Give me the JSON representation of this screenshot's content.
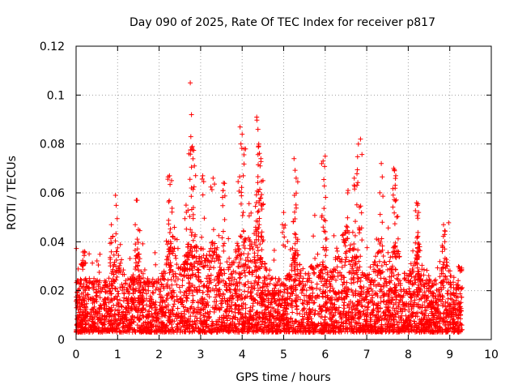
{
  "chart_data": {
    "type": "scatter",
    "title": "Day 090 of 2025, Rate Of TEC Index for receiver p817",
    "xlabel": "GPS time / hours",
    "ylabel": "ROTI / TECUs",
    "xlim": [
      0,
      10
    ],
    "ylim": [
      0,
      0.12
    ],
    "xticks": [
      0,
      1,
      2,
      3,
      4,
      5,
      6,
      7,
      8,
      9,
      10
    ],
    "yticks": [
      0,
      0.02,
      0.04,
      0.06,
      0.08,
      0.1,
      0.12
    ],
    "xtick_labels": [
      "0",
      "1",
      "2",
      "3",
      "4",
      "5",
      "6",
      "7",
      "8",
      "9",
      "10"
    ],
    "ytick_labels": [
      "0",
      "0.02",
      "0.04",
      "0.06",
      "0.08",
      "0.1",
      "0.12"
    ],
    "grid": true,
    "marker": "+",
    "marker_color": "#ff0000",
    "series": [
      {
        "name": "ROTI",
        "description": "thousands of points between 0 and ~9.3 h; representative sample of peak points listed, bulk generated as dense cloud",
        "peaks": [
          {
            "x": 0.15,
            "y": 0.031
          },
          {
            "x": 0.2,
            "y": 0.036
          },
          {
            "x": 0.85,
            "y": 0.047
          },
          {
            "x": 0.95,
            "y": 0.059
          },
          {
            "x": 1.45,
            "y": 0.057
          },
          {
            "x": 1.5,
            "y": 0.045
          },
          {
            "x": 2.25,
            "y": 0.067
          },
          {
            "x": 2.3,
            "y": 0.065
          },
          {
            "x": 2.65,
            "y": 0.055
          },
          {
            "x": 2.75,
            "y": 0.105
          },
          {
            "x": 2.78,
            "y": 0.092
          },
          {
            "x": 2.8,
            "y": 0.079
          },
          {
            "x": 2.85,
            "y": 0.071
          },
          {
            "x": 3.05,
            "y": 0.067
          },
          {
            "x": 3.3,
            "y": 0.066
          },
          {
            "x": 3.55,
            "y": 0.064
          },
          {
            "x": 3.95,
            "y": 0.087
          },
          {
            "x": 4.0,
            "y": 0.084
          },
          {
            "x": 4.05,
            "y": 0.078
          },
          {
            "x": 4.35,
            "y": 0.091
          },
          {
            "x": 4.38,
            "y": 0.086
          },
          {
            "x": 4.4,
            "y": 0.08
          },
          {
            "x": 4.45,
            "y": 0.074
          },
          {
            "x": 4.5,
            "y": 0.065
          },
          {
            "x": 5.0,
            "y": 0.052
          },
          {
            "x": 5.25,
            "y": 0.074
          },
          {
            "x": 5.3,
            "y": 0.066
          },
          {
            "x": 5.95,
            "y": 0.073
          },
          {
            "x": 6.0,
            "y": 0.075
          },
          {
            "x": 6.55,
            "y": 0.061
          },
          {
            "x": 6.7,
            "y": 0.066
          },
          {
            "x": 6.8,
            "y": 0.08
          },
          {
            "x": 6.85,
            "y": 0.082
          },
          {
            "x": 7.35,
            "y": 0.072
          },
          {
            "x": 7.65,
            "y": 0.07
          },
          {
            "x": 7.7,
            "y": 0.067
          },
          {
            "x": 8.2,
            "y": 0.056
          },
          {
            "x": 8.25,
            "y": 0.052
          },
          {
            "x": 8.85,
            "y": 0.047
          },
          {
            "x": 9.25,
            "y": 0.028
          }
        ],
        "x_range": [
          0.0,
          9.3
        ],
        "typical_range": [
          0.003,
          0.03
        ]
      }
    ]
  }
}
